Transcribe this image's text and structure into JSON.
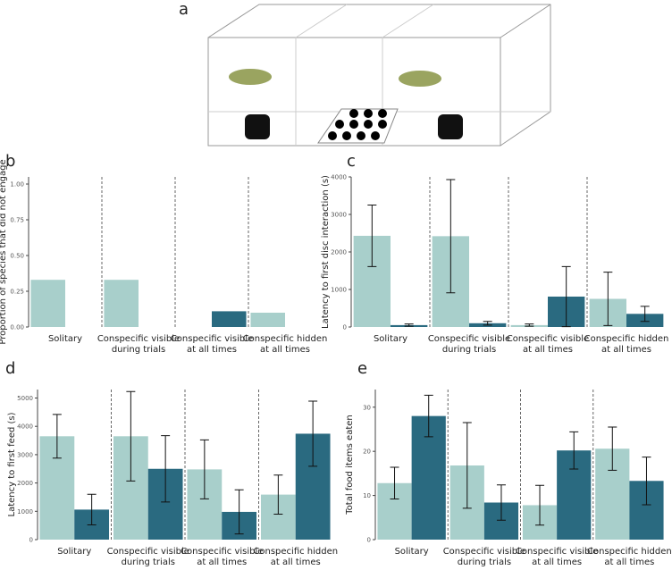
{
  "panel_a": {
    "label": "a"
  },
  "chart_data": [
    {
      "type": "bar",
      "label": "b",
      "y_label": "Proportion of species that did not engage",
      "categories": [
        "Solitary",
        "Conspecific visible\nduring trials",
        "Conspecific visible\nat all times",
        "Conspecific hidden\nat all times"
      ],
      "series": [
        {
          "color": "#a8cfcb",
          "values": [
            0.33,
            0.33,
            0,
            0.1
          ]
        },
        {
          "color": "#2a6a80",
          "values": [
            0,
            0,
            0.11,
            0
          ]
        }
      ],
      "ylim": [
        0,
        1.05
      ],
      "yticks": [
        {
          "value": 0,
          "label": "0.00"
        },
        {
          "value": 0.25,
          "label": "0.25"
        },
        {
          "value": 0.5,
          "label": "0.50"
        },
        {
          "value": 0.75,
          "label": "0.75"
        },
        {
          "value": 1,
          "label": "1.00"
        }
      ]
    },
    {
      "type": "bar",
      "label": "c",
      "y_label": "Latency to first disc interaction (s)",
      "categories": [
        "Solitary",
        "Conspecific visible\nduring trials",
        "Conspecific visible\nat all times",
        "Conspecific hidden\nat all times"
      ],
      "series": [
        {
          "color": "#a8cfcb",
          "values": [
            2430,
            2420,
            50,
            750
          ],
          "errors": [
            820,
            1510,
            30,
            710
          ]
        },
        {
          "color": "#2a6a80",
          "values": [
            50,
            100,
            810,
            350
          ],
          "errors": [
            30,
            50,
            800,
            200
          ]
        }
      ],
      "ylim": [
        0,
        4000
      ],
      "yticks": [
        0,
        1000,
        2000,
        3000,
        4000
      ]
    },
    {
      "type": "bar",
      "label": "d",
      "y_label": "Latency to first feed (s)",
      "categories": [
        "Solitary",
        "Conspecific visible\nduring trials",
        "Conspecific visible\nat all times",
        "Conspecific hidden\nat all times"
      ],
      "series": [
        {
          "color": "#a8cfcb",
          "values": [
            3650,
            3650,
            2480,
            1590
          ],
          "errors": [
            770,
            1580,
            1040,
            690
          ]
        },
        {
          "color": "#2a6a80",
          "values": [
            1060,
            2500,
            980,
            3740
          ],
          "errors": [
            540,
            1170,
            780,
            1150
          ]
        }
      ],
      "ylim": [
        0,
        5300
      ],
      "yticks": [
        0,
        1000,
        2000,
        3000,
        4000,
        5000
      ]
    },
    {
      "type": "bar",
      "label": "e",
      "y_label": "Total food items eaten",
      "categories": [
        "Solitary",
        "Conspecific visible\nduring trials",
        "Conspecific visible\nat all times",
        "Conspecific hidden\nat all times"
      ],
      "series": [
        {
          "color": "#a8cfcb",
          "values": [
            12.8,
            16.8,
            7.8,
            20.6
          ],
          "errors": [
            3.6,
            9.7,
            4.5,
            4.9
          ]
        },
        {
          "color": "#2a6a80",
          "values": [
            28,
            8.4,
            20.2,
            13.3
          ],
          "errors": [
            4.7,
            4.0,
            4.2,
            5.4
          ]
        }
      ],
      "ylim": [
        0,
        34
      ],
      "yticks": [
        0,
        10,
        20,
        30
      ]
    }
  ]
}
